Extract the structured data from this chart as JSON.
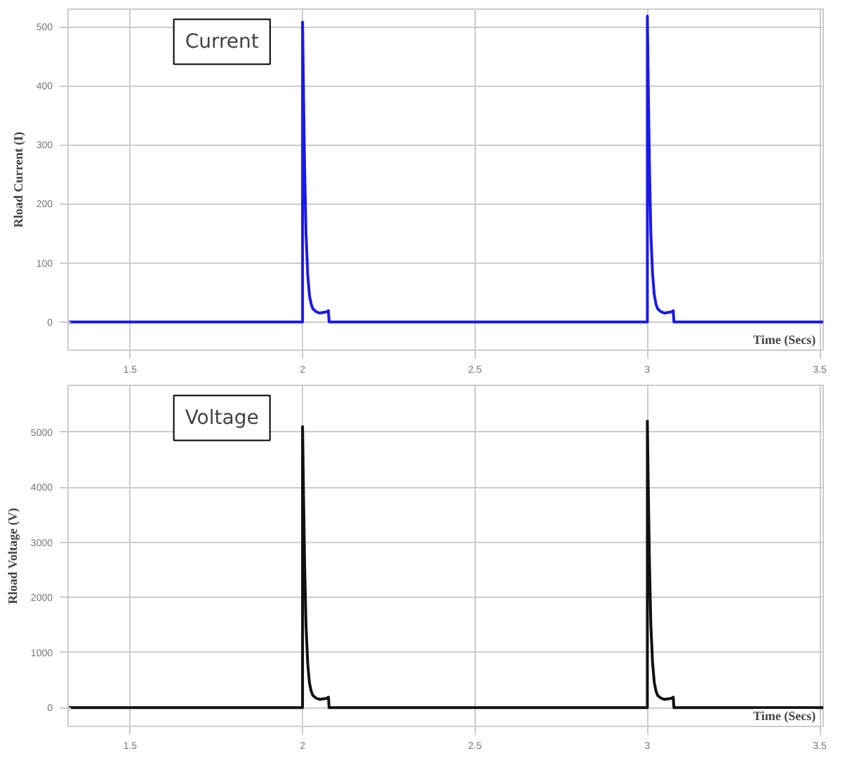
{
  "chart_data": [
    {
      "type": "line",
      "title": "Current",
      "ylabel": "Rload Current (I)",
      "xlabel": "Time (Secs)",
      "xlim": [
        1.32,
        3.51
      ],
      "ylim": [
        -48,
        530
      ],
      "xticks": [
        1.5,
        2,
        2.5,
        3,
        3.5
      ],
      "yticks": [
        0,
        100,
        200,
        300,
        400,
        500
      ],
      "grid": true,
      "marker": "none",
      "line_style": "solid",
      "series": [
        {
          "color": "#1a1ae6",
          "x": [
            1.32,
            2.0,
            2.0,
            2.003,
            2.006,
            2.01,
            2.015,
            2.02,
            2.025,
            2.03,
            2.04,
            2.05,
            2.06,
            2.07,
            2.075,
            2.077,
            3.0,
            3.0,
            3.003,
            3.006,
            3.01,
            3.015,
            3.02,
            3.025,
            3.03,
            3.04,
            3.05,
            3.06,
            3.07,
            3.075,
            3.077,
            3.51
          ],
          "values": [
            0,
            0,
            508,
            380,
            260,
            150,
            80,
            45,
            30,
            22,
            17,
            15,
            16,
            17,
            19,
            0,
            0,
            518,
            385,
            265,
            152,
            82,
            46,
            30,
            22,
            17,
            15,
            16,
            17,
            19,
            0,
            0
          ]
        }
      ]
    },
    {
      "type": "line",
      "title": "Voltage",
      "ylabel": "Rload Voltage (V)",
      "xlabel": "Time (Secs)",
      "xlim": [
        1.32,
        3.51
      ],
      "ylim": [
        -340,
        5850
      ],
      "xticks": [
        1.5,
        2,
        2.5,
        3,
        3.5
      ],
      "yticks": [
        0,
        1000,
        2000,
        3000,
        4000,
        5000
      ],
      "grid": true,
      "marker": "none",
      "line_style": "solid",
      "series": [
        {
          "color": "#111111",
          "x": [
            1.32,
            2.0,
            2.0,
            2.003,
            2.006,
            2.01,
            2.015,
            2.02,
            2.025,
            2.03,
            2.04,
            2.05,
            2.06,
            2.07,
            2.075,
            2.077,
            3.0,
            3.0,
            3.003,
            3.006,
            3.01,
            3.015,
            3.02,
            3.025,
            3.03,
            3.04,
            3.05,
            3.06,
            3.07,
            3.075,
            3.077,
            3.51
          ],
          "values": [
            0,
            0,
            5100,
            3800,
            2600,
            1500,
            800,
            450,
            300,
            220,
            170,
            150,
            160,
            170,
            190,
            0,
            0,
            5200,
            3850,
            2650,
            1520,
            820,
            460,
            300,
            220,
            170,
            150,
            160,
            170,
            190,
            0,
            0
          ]
        }
      ]
    }
  ]
}
